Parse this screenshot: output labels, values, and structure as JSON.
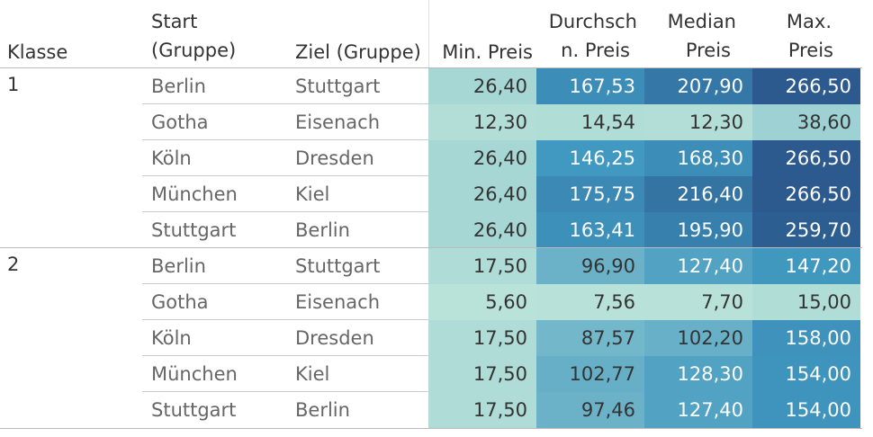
{
  "chart_data": {
    "type": "table",
    "headers": {
      "klasse": "Klasse",
      "start": [
        "Start",
        "(Gruppe)"
      ],
      "ziel": "Ziel (Gruppe)",
      "min": "Min. Preis",
      "avg": [
        "Durchsch",
        "n. Preis"
      ],
      "median": [
        "Median",
        "Preis"
      ],
      "max": [
        "Max.",
        "Preis"
      ]
    },
    "groups": [
      {
        "klasse": "1",
        "rows": [
          {
            "start": "Berlin",
            "ziel": "Stuttgart",
            "min": "26,40",
            "avg": "167,53",
            "median": "207,90",
            "max": "266,50"
          },
          {
            "start": "Gotha",
            "ziel": "Eisenach",
            "min": "12,30",
            "avg": "14,54",
            "median": "12,30",
            "max": "38,60"
          },
          {
            "start": "Köln",
            "ziel": "Dresden",
            "min": "26,40",
            "avg": "146,25",
            "median": "168,30",
            "max": "266,50"
          },
          {
            "start": "München",
            "ziel": "Kiel",
            "min": "26,40",
            "avg": "175,75",
            "median": "216,40",
            "max": "266,50"
          },
          {
            "start": "Stuttgart",
            "ziel": "Berlin",
            "min": "26,40",
            "avg": "163,41",
            "median": "195,90",
            "max": "259,70"
          }
        ]
      },
      {
        "klasse": "2",
        "rows": [
          {
            "start": "Berlin",
            "ziel": "Stuttgart",
            "min": "17,50",
            "avg": "96,90",
            "median": "127,40",
            "max": "147,20"
          },
          {
            "start": "Gotha",
            "ziel": "Eisenach",
            "min": "5,60",
            "avg": "7,56",
            "median": "7,70",
            "max": "15,00"
          },
          {
            "start": "Köln",
            "ziel": "Dresden",
            "min": "17,50",
            "avg": "87,57",
            "median": "102,20",
            "max": "158,00"
          },
          {
            "start": "München",
            "ziel": "Kiel",
            "min": "17,50",
            "avg": "102,77",
            "median": "128,30",
            "max": "154,00"
          },
          {
            "start": "Stuttgart",
            "ziel": "Berlin",
            "min": "17,50",
            "avg": "97,46",
            "median": "127,40",
            "max": "154,00"
          }
        ]
      }
    ],
    "color_scale": {
      "low": "#b9e2d9",
      "mid": "#3f97bf",
      "high": "#2c5a8f",
      "range": [
        5.6,
        266.5
      ]
    }
  }
}
